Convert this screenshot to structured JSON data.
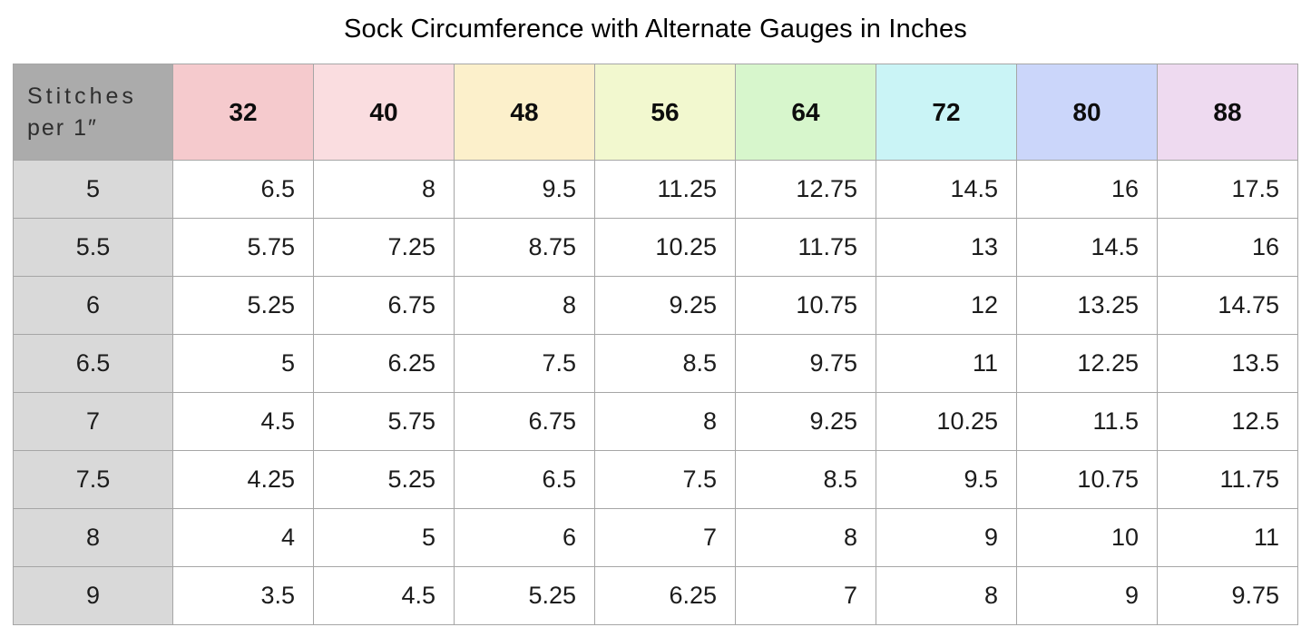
{
  "title": "Sock Circumference with Alternate Gauges in Inches",
  "corner_header": {
    "line1": "Stitches",
    "line2": "per 1″"
  },
  "colors": {
    "corner_bg": "#ababab",
    "row_header_bg": "#d9d9d9",
    "cell_bg": "#ffffff",
    "border": "#a6a6a6",
    "title_text": "#000000"
  },
  "chart_data": {
    "type": "table",
    "title": "Sock Circumference with Alternate Gauges in Inches",
    "corner_label": "Stitches per 1″",
    "columns": [
      {
        "label": "32",
        "color": "#f5cacd"
      },
      {
        "label": "40",
        "color": "#fadde0"
      },
      {
        "label": "48",
        "color": "#fcf0cb"
      },
      {
        "label": "56",
        "color": "#f2f8cf"
      },
      {
        "label": "64",
        "color": "#d7f6cc"
      },
      {
        "label": "72",
        "color": "#caf4f6"
      },
      {
        "label": "80",
        "color": "#cbd6fa"
      },
      {
        "label": "88",
        "color": "#eedaf0"
      }
    ],
    "rows": [
      {
        "stitches": "5",
        "values": [
          "6.5",
          "8",
          "9.5",
          "11.25",
          "12.75",
          "14.5",
          "16",
          "17.5"
        ]
      },
      {
        "stitches": "5.5",
        "values": [
          "5.75",
          "7.25",
          "8.75",
          "10.25",
          "11.75",
          "13",
          "14.5",
          "16"
        ]
      },
      {
        "stitches": "6",
        "values": [
          "5.25",
          "6.75",
          "8",
          "9.25",
          "10.75",
          "12",
          "13.25",
          "14.75"
        ]
      },
      {
        "stitches": "6.5",
        "values": [
          "5",
          "6.25",
          "7.5",
          "8.5",
          "9.75",
          "11",
          "12.25",
          "13.5"
        ]
      },
      {
        "stitches": "7",
        "values": [
          "4.5",
          "5.75",
          "6.75",
          "8",
          "9.25",
          "10.25",
          "11.5",
          "12.5"
        ]
      },
      {
        "stitches": "7.5",
        "values": [
          "4.25",
          "5.25",
          "6.5",
          "7.5",
          "8.5",
          "9.5",
          "10.75",
          "11.75"
        ]
      },
      {
        "stitches": "8",
        "values": [
          "4",
          "5",
          "6",
          "7",
          "8",
          "9",
          "10",
          "11"
        ]
      },
      {
        "stitches": "9",
        "values": [
          "3.5",
          "4.5",
          "5.25",
          "6.25",
          "7",
          "8",
          "9",
          "9.75"
        ]
      }
    ]
  }
}
